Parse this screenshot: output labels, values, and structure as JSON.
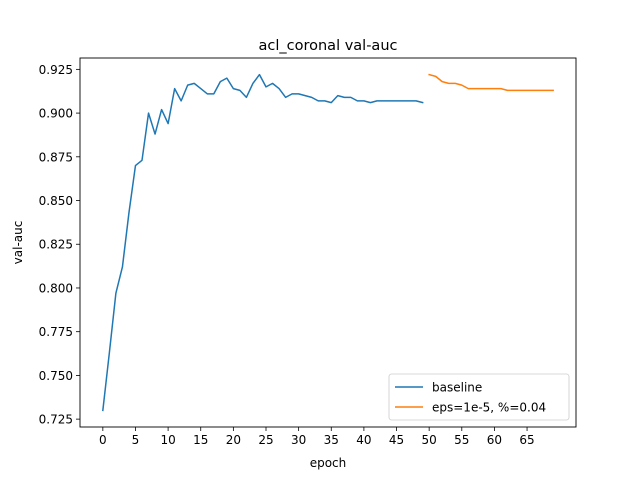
{
  "chart_data": {
    "type": "line",
    "title": "acl_coronal val-auc",
    "xlabel": "epoch",
    "ylabel": "val-auc",
    "xlim": [
      -3.5,
      72.5
    ],
    "ylim": [
      0.7205,
      0.9315
    ],
    "xticks": [
      0,
      5,
      10,
      15,
      20,
      25,
      30,
      35,
      40,
      45,
      50,
      55,
      60,
      65
    ],
    "yticks": [
      0.725,
      0.75,
      0.775,
      0.8,
      0.825,
      0.85,
      0.875,
      0.9,
      0.925
    ],
    "grid": false,
    "legend_position": "lower-right",
    "series": [
      {
        "name": "baseline",
        "color": "#1f77b4",
        "x": [
          0,
          1,
          2,
          3,
          4,
          5,
          6,
          7,
          8,
          9,
          10,
          11,
          12,
          13,
          14,
          15,
          16,
          17,
          18,
          19,
          20,
          21,
          22,
          23,
          24,
          25,
          26,
          27,
          28,
          29,
          30,
          31,
          32,
          33,
          34,
          35,
          36,
          37,
          38,
          39,
          40,
          41,
          42,
          43,
          44,
          45,
          46,
          47,
          48,
          49
        ],
        "y": [
          0.73,
          0.763,
          0.797,
          0.812,
          0.843,
          0.87,
          0.873,
          0.9,
          0.888,
          0.902,
          0.894,
          0.914,
          0.907,
          0.916,
          0.917,
          0.914,
          0.911,
          0.911,
          0.918,
          0.92,
          0.914,
          0.913,
          0.909,
          0.917,
          0.922,
          0.915,
          0.917,
          0.914,
          0.909,
          0.911,
          0.911,
          0.91,
          0.909,
          0.907,
          0.907,
          0.906,
          0.91,
          0.909,
          0.909,
          0.907,
          0.907,
          0.906,
          0.907,
          0.907,
          0.907,
          0.907,
          0.907,
          0.907,
          0.907,
          0.906
        ]
      },
      {
        "name": "eps=1e-5, %=0.04",
        "color": "#ff7f0e",
        "x": [
          50,
          51,
          52,
          53,
          54,
          55,
          56,
          57,
          58,
          59,
          60,
          61,
          62,
          63,
          64,
          65,
          66,
          67,
          68,
          69
        ],
        "y": [
          0.922,
          0.921,
          0.918,
          0.917,
          0.917,
          0.916,
          0.914,
          0.914,
          0.914,
          0.914,
          0.914,
          0.914,
          0.913,
          0.913,
          0.913,
          0.913,
          0.913,
          0.913,
          0.913,
          0.913
        ]
      }
    ]
  }
}
